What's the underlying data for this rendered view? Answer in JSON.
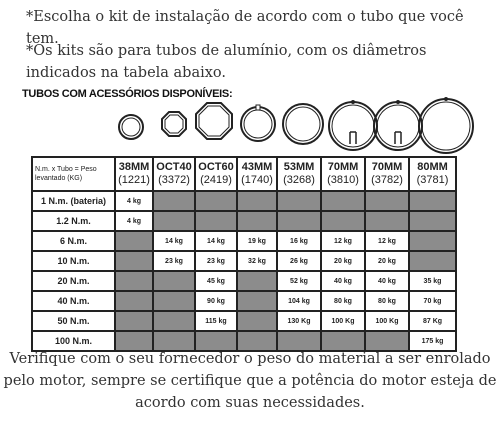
{
  "intro": {
    "line1": "*Escolha o kit de instalação de acordo com o tubo que você tem.",
    "line2": "*Os kits são para tubos de alumínio, com os diâmetros indicados na tabela abaixo."
  },
  "heading": "TUBOS COM ACESSÓRIOS DISPONÍVEIS:",
  "table": {
    "corner": "N.m. x Tubo = Peso levantado (KG)",
    "columns": [
      {
        "name": "38MM",
        "code": "(1221)"
      },
      {
        "name": "OCT40",
        "code": "(3372)"
      },
      {
        "name": "OCT60",
        "code": "(2419)"
      },
      {
        "name": "43MM",
        "code": "(1740)"
      },
      {
        "name": "53MM",
        "code": "(3268)"
      },
      {
        "name": "70MM",
        "code": "(3810)"
      },
      {
        "name": "70MM",
        "code": "(3782)"
      },
      {
        "name": "80MM",
        "code": "(3781)"
      }
    ],
    "rows": [
      {
        "label": "1 N.m. (bateria)",
        "cells": [
          "4 kg",
          "",
          "",
          "",
          "",
          "",
          "",
          ""
        ]
      },
      {
        "label": "1.2 N.m.",
        "cells": [
          "4 kg",
          "",
          "",
          "",
          "",
          "",
          "",
          ""
        ]
      },
      {
        "label": "6 N.m.",
        "cells": [
          "",
          "14 kg",
          "14 kg",
          "19 kg",
          "16 kg",
          "12 kg",
          "12 kg",
          ""
        ]
      },
      {
        "label": "10 N.m.",
        "cells": [
          "",
          "23 kg",
          "23 kg",
          "32 kg",
          "26 kg",
          "20 kg",
          "20 kg",
          ""
        ]
      },
      {
        "label": "20 N.m.",
        "cells": [
          "",
          "",
          "45 kg",
          "",
          "52 kg",
          "40 kg",
          "40 kg",
          "35 kg"
        ]
      },
      {
        "label": "40 N.m.",
        "cells": [
          "",
          "",
          "90 kg",
          "",
          "104 kg",
          "80 kg",
          "80 kg",
          "70 kg"
        ]
      },
      {
        "label": "50 N.m.",
        "cells": [
          "",
          "",
          "115 kg",
          "",
          "130 Kg",
          "100 Kg",
          "100 Kg",
          "87 Kg"
        ]
      },
      {
        "label": "100 N.m.",
        "cells": [
          "",
          "",
          "",
          "",
          "",
          "",
          "",
          "175 kg"
        ]
      }
    ]
  },
  "tube_icons": [
    "round-tube-icon",
    "octagon-tube-icon",
    "octagon-tube-icon",
    "round-tube-icon",
    "round-tube-icon",
    "round-tube-icon",
    "round-tube-icon",
    "round-tube-icon"
  ],
  "footer": {
    "line1": "Verifique com o seu fornecedor o peso do material a ser enrolado",
    "line2": "pelo motor, sempre se certifique que a potência do motor esteja de",
    "line3": "acordo com suas necessidades."
  }
}
